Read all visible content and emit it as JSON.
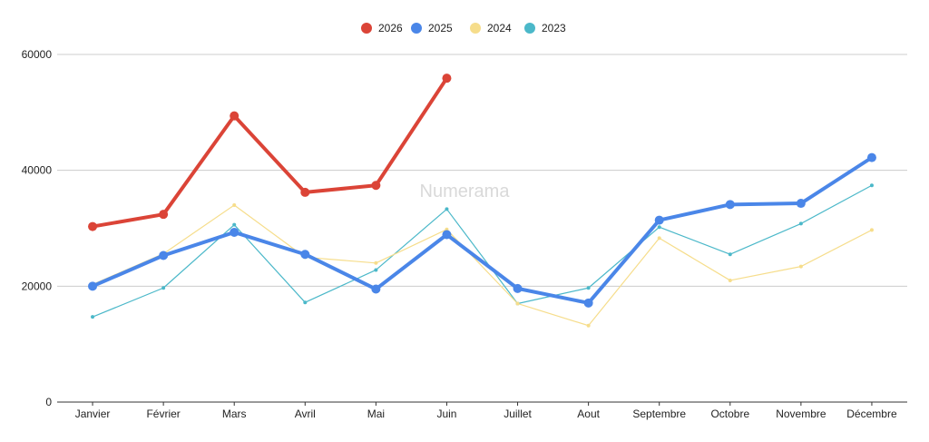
{
  "watermark": "Numerama",
  "chart_data": {
    "type": "line",
    "title": "",
    "xlabel": "",
    "ylabel": "",
    "categories": [
      "Janvier",
      "Février",
      "Mars",
      "Avril",
      "Mai",
      "Juin",
      "Juillet",
      "Aout",
      "Septembre",
      "Octobre",
      "Novembre",
      "Décembre"
    ],
    "ylim": [
      0,
      60000
    ],
    "yticks": [
      "0",
      "20000",
      "40000",
      "60000"
    ],
    "grid": true,
    "legend_position": "top-center",
    "series": [
      {
        "name": "2026",
        "color": "#db4437",
        "weight": "heavy",
        "values": [
          30300,
          32400,
          49400,
          36200,
          37400,
          55900,
          null,
          null,
          null,
          null,
          null,
          null
        ]
      },
      {
        "name": "2025",
        "color": "#4a86e8",
        "weight": "heavy",
        "values": [
          20000,
          25300,
          29300,
          25500,
          19500,
          28900,
          19600,
          17100,
          31400,
          34100,
          34300,
          42200
        ]
      },
      {
        "name": "2024",
        "color": "#f6dd8b",
        "weight": "light",
        "values": [
          20300,
          25600,
          34000,
          25000,
          24000,
          29800,
          17000,
          13200,
          28300,
          21000,
          23400,
          29700
        ]
      },
      {
        "name": "2023",
        "color": "#4bb8c9",
        "weight": "light",
        "values": [
          14700,
          19700,
          30600,
          17200,
          22800,
          33300,
          17000,
          19700,
          30200,
          25500,
          30800,
          37400
        ]
      }
    ]
  }
}
